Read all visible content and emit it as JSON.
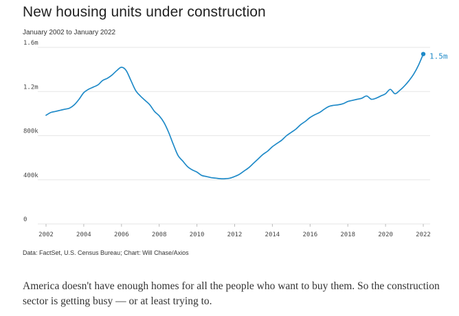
{
  "header": {
    "title": "New housing units under construction",
    "subtitle": "January 2002 to January 2022"
  },
  "footer": {
    "source": "Data: FactSet, U.S. Census Bureau; Chart: Will Chase/Axios",
    "caption": "America doesn't have enough homes for all the people who want to buy them. So the construction sector is getting busy — or at least trying to."
  },
  "colors": {
    "line": "#1f8ac8",
    "grid": "#e6e6e6",
    "tick_text": "#444444"
  },
  "chart_data": {
    "type": "line",
    "title": "New housing units under construction",
    "subtitle": "January 2002 to January 2022",
    "xlim": [
      2002,
      2022
    ],
    "ylim": [
      0,
      1600000
    ],
    "grid": true,
    "y_ticks": [
      {
        "value": 0,
        "label": "0"
      },
      {
        "value": 400000,
        "label": "400k"
      },
      {
        "value": 800000,
        "label": "800k"
      },
      {
        "value": 1200000,
        "label": "1.2m"
      },
      {
        "value": 1600000,
        "label": "1.6m"
      }
    ],
    "x_ticks": [
      {
        "value": 2002,
        "label": "2002"
      },
      {
        "value": 2004,
        "label": "2004"
      },
      {
        "value": 2006,
        "label": "2006"
      },
      {
        "value": 2008,
        "label": "2008"
      },
      {
        "value": 2010,
        "label": "2010"
      },
      {
        "value": 2012,
        "label": "2012"
      },
      {
        "value": 2014,
        "label": "2014"
      },
      {
        "value": 2016,
        "label": "2016"
      },
      {
        "value": 2018,
        "label": "2018"
      },
      {
        "value": 2020,
        "label": "2020"
      },
      {
        "value": 2022,
        "label": "2022"
      }
    ],
    "end_label": "1.5m",
    "series": [
      {
        "x": [
          2002.0,
          2002.25,
          2002.5,
          2002.75,
          2003.0,
          2003.25,
          2003.5,
          2003.75,
          2004.0,
          2004.25,
          2004.5,
          2004.75,
          2005.0,
          2005.25,
          2005.5,
          2005.75,
          2006.0,
          2006.25,
          2006.5,
          2006.75,
          2007.0,
          2007.25,
          2007.5,
          2007.75,
          2008.0,
          2008.25,
          2008.5,
          2008.75,
          2009.0,
          2009.25,
          2009.5,
          2009.75,
          2010.0,
          2010.25,
          2010.5,
          2010.75,
          2011.0,
          2011.25,
          2011.5,
          2011.75,
          2012.0,
          2012.25,
          2012.5,
          2012.75,
          2013.0,
          2013.25,
          2013.5,
          2013.75,
          2014.0,
          2014.25,
          2014.5,
          2014.75,
          2015.0,
          2015.25,
          2015.5,
          2015.75,
          2016.0,
          2016.25,
          2016.5,
          2016.75,
          2017.0,
          2017.25,
          2017.5,
          2017.75,
          2018.0,
          2018.25,
          2018.5,
          2018.75,
          2019.0,
          2019.25,
          2019.5,
          2019.75,
          2020.0,
          2020.25,
          2020.5,
          2020.75,
          2021.0,
          2021.25,
          2021.5,
          2021.75,
          2022.0
        ],
        "values": [
          985000,
          1010000,
          1020000,
          1030000,
          1040000,
          1050000,
          1080000,
          1130000,
          1190000,
          1220000,
          1240000,
          1260000,
          1300000,
          1320000,
          1350000,
          1390000,
          1420000,
          1390000,
          1300000,
          1210000,
          1160000,
          1120000,
          1080000,
          1020000,
          980000,
          920000,
          830000,
          720000,
          620000,
          570000,
          520000,
          490000,
          470000,
          440000,
          430000,
          420000,
          415000,
          410000,
          410000,
          415000,
          430000,
          450000,
          480000,
          510000,
          550000,
          590000,
          630000,
          660000,
          700000,
          730000,
          760000,
          800000,
          830000,
          860000,
          900000,
          930000,
          965000,
          990000,
          1010000,
          1040000,
          1065000,
          1075000,
          1080000,
          1090000,
          1110000,
          1120000,
          1130000,
          1140000,
          1160000,
          1130000,
          1140000,
          1160000,
          1180000,
          1220000,
          1180000,
          1210000,
          1250000,
          1300000,
          1360000,
          1440000,
          1540000
        ]
      }
    ]
  }
}
